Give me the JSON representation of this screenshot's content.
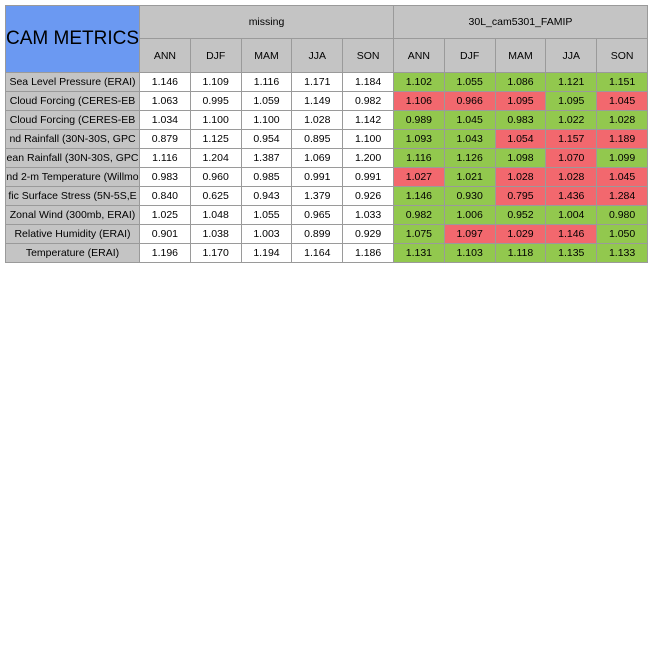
{
  "title": "CAM METRICS",
  "groups": [
    "missing",
    "30L_cam5301_FAMIP"
  ],
  "seasons": [
    "ANN",
    "DJF",
    "MAM",
    "JJA",
    "SON"
  ],
  "rows": [
    {
      "label": "Sea Level Pressure (ERAI)",
      "missing": [
        "1.146",
        "1.109",
        "1.116",
        "1.171",
        "1.184"
      ],
      "model": [
        "1.102",
        "1.055",
        "1.086",
        "1.121",
        "1.151"
      ],
      "colors": [
        "green",
        "green",
        "green",
        "green",
        "green"
      ]
    },
    {
      "label": "Cloud Forcing (CERES-EB",
      "missing": [
        "1.063",
        "0.995",
        "1.059",
        "1.149",
        "0.982"
      ],
      "model": [
        "1.106",
        "0.966",
        "1.095",
        "1.095",
        "1.045"
      ],
      "colors": [
        "red",
        "red",
        "red",
        "green",
        "red"
      ]
    },
    {
      "label": "Cloud Forcing (CERES-EB",
      "missing": [
        "1.034",
        "1.100",
        "1.100",
        "1.028",
        "1.142"
      ],
      "model": [
        "0.989",
        "1.045",
        "0.983",
        "1.022",
        "1.028"
      ],
      "colors": [
        "green",
        "green",
        "green",
        "green",
        "green"
      ]
    },
    {
      "label": "nd Rainfall (30N-30S, GPC",
      "missing": [
        "0.879",
        "1.125",
        "0.954",
        "0.895",
        "1.100"
      ],
      "model": [
        "1.093",
        "1.043",
        "1.054",
        "1.157",
        "1.189"
      ],
      "colors": [
        "green",
        "green",
        "red",
        "red",
        "red"
      ]
    },
    {
      "label": "ean Rainfall (30N-30S, GPC",
      "missing": [
        "1.116",
        "1.204",
        "1.387",
        "1.069",
        "1.200"
      ],
      "model": [
        "1.116",
        "1.126",
        "1.098",
        "1.070",
        "1.099"
      ],
      "colors": [
        "green",
        "green",
        "green",
        "red",
        "green"
      ]
    },
    {
      "label": "nd 2-m Temperature (Willmo",
      "missing": [
        "0.983",
        "0.960",
        "0.985",
        "0.991",
        "0.991"
      ],
      "model": [
        "1.027",
        "1.021",
        "1.028",
        "1.028",
        "1.045"
      ],
      "colors": [
        "red",
        "green",
        "red",
        "red",
        "red"
      ]
    },
    {
      "label": "fic Surface Stress (5N-5S,E",
      "missing": [
        "0.840",
        "0.625",
        "0.943",
        "1.379",
        "0.926"
      ],
      "model": [
        "1.146",
        "0.930",
        "0.795",
        "1.436",
        "1.284"
      ],
      "colors": [
        "green",
        "green",
        "red",
        "red",
        "red"
      ]
    },
    {
      "label": "Zonal Wind (300mb, ERAI)",
      "missing": [
        "1.025",
        "1.048",
        "1.055",
        "0.965",
        "1.033"
      ],
      "model": [
        "0.982",
        "1.006",
        "0.952",
        "1.004",
        "0.980"
      ],
      "colors": [
        "green",
        "green",
        "green",
        "green",
        "green"
      ]
    },
    {
      "label": "Relative Humidity (ERAI)",
      "missing": [
        "0.901",
        "1.038",
        "1.003",
        "0.899",
        "0.929"
      ],
      "model": [
        "1.075",
        "1.097",
        "1.029",
        "1.146",
        "1.050"
      ],
      "colors": [
        "green",
        "red",
        "red",
        "red",
        "green"
      ]
    },
    {
      "label": "Temperature (ERAI)",
      "missing": [
        "1.196",
        "1.170",
        "1.194",
        "1.164",
        "1.186"
      ],
      "model": [
        "1.131",
        "1.103",
        "1.118",
        "1.135",
        "1.133"
      ],
      "colors": [
        "green",
        "green",
        "green",
        "green",
        "green"
      ]
    }
  ]
}
